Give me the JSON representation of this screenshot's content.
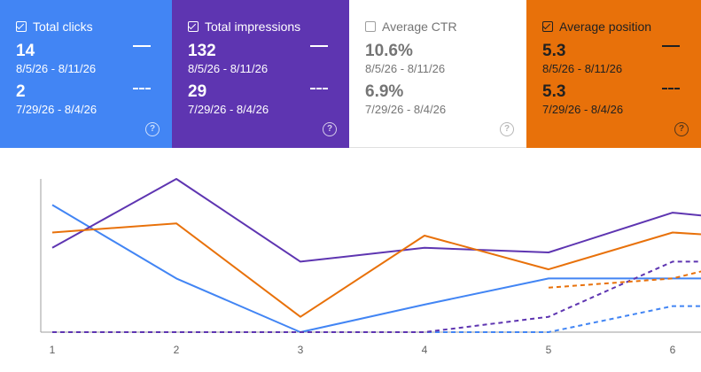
{
  "cards": [
    {
      "label": "Total clicks",
      "checked": true,
      "current_value": "14",
      "current_range": "8/5/26 - 8/11/26",
      "previous_value": "2",
      "previous_range": "7/29/26 - 8/4/26",
      "color": "#4285f4"
    },
    {
      "label": "Total impressions",
      "checked": true,
      "current_value": "132",
      "current_range": "8/5/26 - 8/11/26",
      "previous_value": "29",
      "previous_range": "7/29/26 - 8/4/26",
      "color": "#5e35b1"
    },
    {
      "label": "Average CTR",
      "checked": false,
      "current_value": "10.6%",
      "current_range": "8/5/26 - 8/11/26",
      "previous_value": "6.9%",
      "previous_range": "7/29/26 - 8/4/26",
      "color": "#ffffff"
    },
    {
      "label": "Average position",
      "checked": true,
      "current_value": "5.3",
      "current_range": "8/5/26 - 8/11/26",
      "previous_value": "5.3",
      "previous_range": "7/29/26 - 8/4/26",
      "color": "#e8710a"
    }
  ],
  "help_icon": "help-circle-icon",
  "chart_data": {
    "type": "line",
    "x": [
      1,
      2,
      3,
      4,
      5,
      6,
      7
    ],
    "series": [
      {
        "name": "Total clicks",
        "period": "current",
        "color": "#4285f4",
        "style": "solid",
        "values": [
          0.83,
          0.35,
          0.0,
          0.18,
          0.35,
          0.35,
          0.35
        ]
      },
      {
        "name": "Total impressions",
        "period": "current",
        "color": "#5e35b1",
        "style": "solid",
        "values": [
          0.55,
          1.0,
          0.46,
          0.55,
          0.52,
          0.78,
          0.7
        ]
      },
      {
        "name": "Average position",
        "period": "current",
        "color": "#e8710a",
        "style": "solid",
        "values": [
          0.65,
          0.71,
          0.1,
          0.63,
          0.41,
          0.65,
          0.6
        ]
      },
      {
        "name": "Total clicks",
        "period": "previous",
        "color": "#4285f4",
        "style": "dashed",
        "values": [
          0.0,
          0.0,
          0.0,
          0.0,
          0.0,
          0.17,
          0.17
        ]
      },
      {
        "name": "Total impressions",
        "period": "previous",
        "color": "#5e35b1",
        "style": "dashed",
        "values": [
          0.0,
          0.0,
          0.0,
          0.0,
          0.1,
          0.46,
          0.46
        ]
      },
      {
        "name": "Average position",
        "period": "previous",
        "color": "#e8710a",
        "style": "dashed",
        "values": [
          null,
          null,
          null,
          null,
          0.29,
          0.35,
          0.55
        ]
      }
    ],
    "xlim": [
      1,
      7
    ],
    "ylim": [
      0,
      1
    ],
    "tick_labels": [
      "1",
      "2",
      "3",
      "4",
      "5",
      "6"
    ],
    "grid": false,
    "axis_color": "#9e9e9e",
    "tick_color": "#616161"
  }
}
